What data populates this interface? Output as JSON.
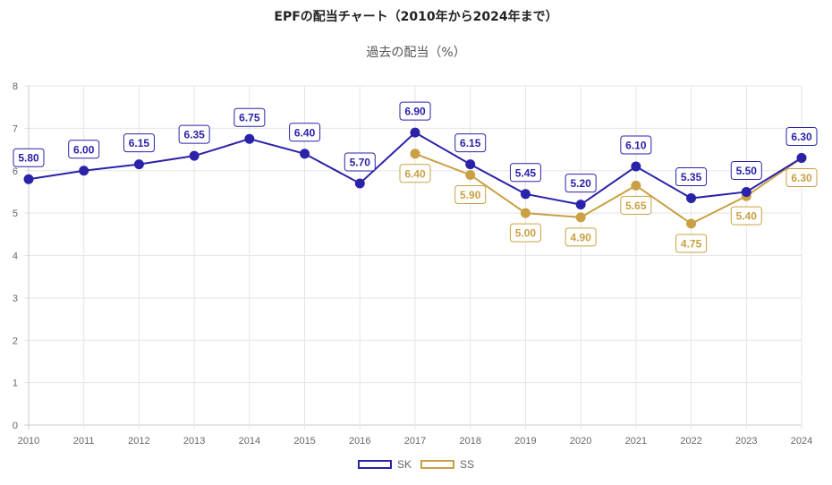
{
  "chart_data": {
    "type": "line",
    "title": "EPFの配当チャート（2010年から2024年まで）",
    "subtitle": "過去の配当（%）",
    "xlabel": "",
    "ylabel": "",
    "x": [
      "2010",
      "2011",
      "2012",
      "2013",
      "2014",
      "2015",
      "2016",
      "2017",
      "2018",
      "2019",
      "2020",
      "2021",
      "2022",
      "2023",
      "2024"
    ],
    "ylim": [
      0,
      8
    ],
    "yticks": [
      0,
      1,
      2,
      3,
      4,
      5,
      6,
      7,
      8
    ],
    "grid": true,
    "legend_position": "bottom",
    "series": [
      {
        "name": "SK",
        "color": "#2a22a8",
        "values": [
          5.8,
          6.0,
          6.15,
          6.35,
          6.75,
          6.4,
          5.7,
          6.9,
          6.15,
          5.45,
          5.2,
          6.1,
          5.35,
          5.5,
          6.3
        ],
        "labels": [
          "5.80",
          "6.00",
          "6.15",
          "6.35",
          "6.75",
          "6.40",
          "5.70",
          "6.90",
          "6.15",
          "5.45",
          "5.20",
          "6.10",
          "5.35",
          "5.50",
          "6.30"
        ],
        "label_position": "above"
      },
      {
        "name": "SS",
        "color": "#c9a043",
        "values": [
          null,
          null,
          null,
          null,
          null,
          null,
          null,
          6.4,
          5.9,
          5.0,
          4.9,
          5.65,
          4.75,
          5.4,
          6.3
        ],
        "labels": [
          null,
          null,
          null,
          null,
          null,
          null,
          null,
          "6.40",
          "5.90",
          "5.00",
          "4.90",
          "5.65",
          "4.75",
          "5.40",
          "6.30"
        ],
        "label_position": "below"
      }
    ]
  }
}
